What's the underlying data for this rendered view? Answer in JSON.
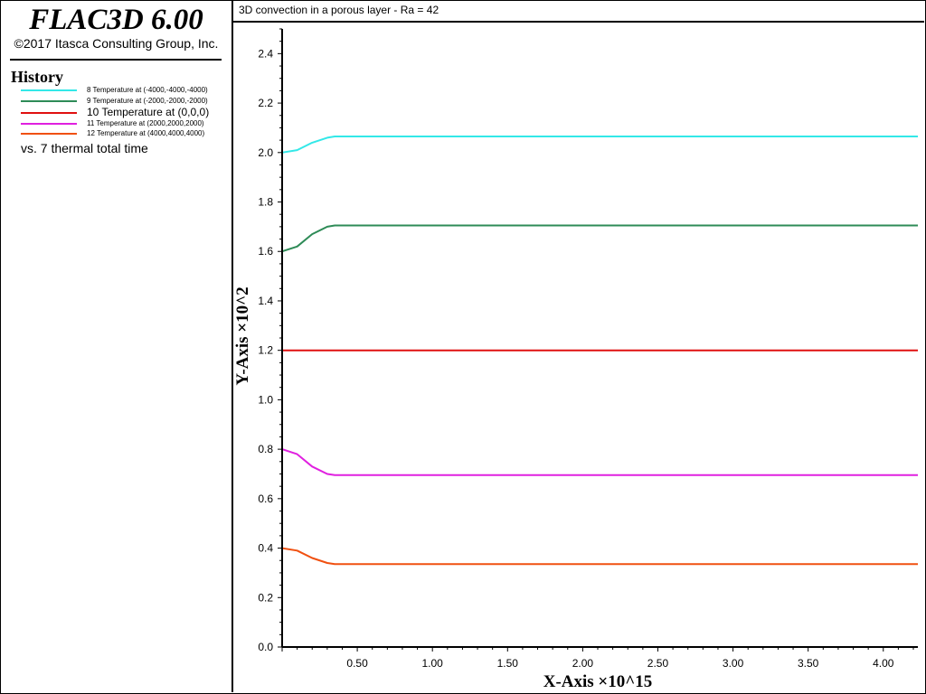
{
  "app": {
    "title": "FLAC3D 6.00",
    "copyright": "©2017 Itasca Consulting Group, Inc."
  },
  "legend": {
    "heading": "History",
    "items": [
      {
        "label": "8 Temperature at (-4000,-4000,-4000)",
        "color": "#33e8e8",
        "size": "small"
      },
      {
        "label": "9 Temperature at (-2000,-2000,-2000)",
        "color": "#2e8b57",
        "size": "small"
      },
      {
        "label": "10 Temperature at (0,0,0)",
        "color": "#e01010",
        "size": "large"
      },
      {
        "label": "11 Temperature at (2000,2000,2000)",
        "color": "#e020e0",
        "size": "small"
      },
      {
        "label": "12 Temperature at (4000,4000,4000)",
        "color": "#f05010",
        "size": "small"
      }
    ],
    "vs": "vs. 7 thermal total time"
  },
  "chart_data": {
    "type": "line",
    "title": "3D convection in a porous layer - Ra = 42",
    "xlabel": "X-Axis ×10^15",
    "ylabel": "Y-Axis ×10^2",
    "xlim": [
      0,
      4.23
    ],
    "ylim": [
      0,
      2.5
    ],
    "xticks": [
      "0.50",
      "1.00",
      "1.50",
      "2.00",
      "2.50",
      "3.00",
      "3.50",
      "4.00"
    ],
    "yticks": [
      "0.0",
      "0.2",
      "0.4",
      "0.6",
      "0.8",
      "1.0",
      "1.2",
      "1.4",
      "1.6",
      "1.8",
      "2.0",
      "2.2",
      "2.4"
    ],
    "grid": false,
    "series": [
      {
        "name": "8 Temperature at (-4000,-4000,-4000)",
        "color": "#33e8e8",
        "x": [
          0.0,
          0.1,
          0.2,
          0.3,
          0.35,
          4.23
        ],
        "y": [
          2.0,
          2.01,
          2.04,
          2.06,
          2.065,
          2.065
        ]
      },
      {
        "name": "9 Temperature at (-2000,-2000,-2000)",
        "color": "#2e8b57",
        "x": [
          0.0,
          0.1,
          0.2,
          0.3,
          0.35,
          4.23
        ],
        "y": [
          1.6,
          1.62,
          1.67,
          1.7,
          1.705,
          1.705
        ]
      },
      {
        "name": "10 Temperature at (0,0,0)",
        "color": "#e01010",
        "x": [
          0.0,
          4.23
        ],
        "y": [
          1.2,
          1.2
        ]
      },
      {
        "name": "11 Temperature at (2000,2000,2000)",
        "color": "#e020e0",
        "x": [
          0.0,
          0.1,
          0.2,
          0.3,
          0.35,
          4.23
        ],
        "y": [
          0.8,
          0.78,
          0.73,
          0.7,
          0.695,
          0.695
        ]
      },
      {
        "name": "12 Temperature at (4000,4000,4000)",
        "color": "#f05010",
        "x": [
          0.0,
          0.1,
          0.2,
          0.3,
          0.35,
          4.23
        ],
        "y": [
          0.4,
          0.39,
          0.36,
          0.34,
          0.335,
          0.335
        ]
      }
    ]
  }
}
